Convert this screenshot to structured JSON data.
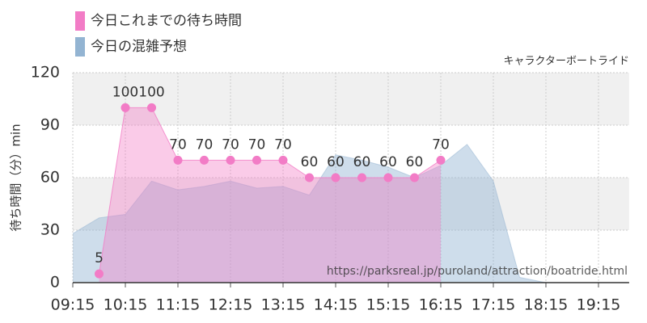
{
  "chart_data": {
    "type": "area",
    "subtitle": "キャラクターボートライド",
    "ylabel": "待ち時間（分）min",
    "watermark": "https://parksreal.jp/puroland/attraction/boatride.html",
    "xlim": [
      "09:15",
      "19:50"
    ],
    "xticks": [
      "09:15",
      "10:15",
      "11:15",
      "12:15",
      "13:15",
      "14:15",
      "15:15",
      "16:15",
      "17:15",
      "18:15",
      "19:15"
    ],
    "ylim": [
      0,
      120
    ],
    "yticks": [
      0,
      30,
      60,
      90,
      120
    ],
    "grid": true,
    "series": [
      {
        "name": "今日の混雑予想",
        "color": "#93b4d2",
        "x": [
          "09:15",
          "09:45",
          "10:15",
          "10:45",
          "11:15",
          "11:45",
          "12:15",
          "12:45",
          "13:15",
          "13:45",
          "14:15",
          "14:45",
          "15:15",
          "15:45",
          "16:15",
          "16:45",
          "17:15",
          "17:45",
          "18:15",
          "18:45",
          "19:15",
          "19:45"
        ],
        "values": [
          28,
          37,
          39,
          58,
          53,
          55,
          58,
          54,
          55,
          50,
          73,
          70,
          66,
          60,
          67,
          79,
          58,
          3,
          0,
          0,
          0,
          0
        ]
      },
      {
        "name": "今日これまでの待ち時間",
        "color": "#f27cc6",
        "x": [
          "09:45",
          "10:15",
          "10:45",
          "11:15",
          "11:45",
          "12:15",
          "12:45",
          "13:15",
          "13:45",
          "14:15",
          "14:45",
          "15:15",
          "15:45",
          "16:15"
        ],
        "values": [
          5,
          100,
          100,
          70,
          70,
          70,
          70,
          70,
          60,
          60,
          60,
          60,
          60,
          70
        ]
      }
    ]
  }
}
